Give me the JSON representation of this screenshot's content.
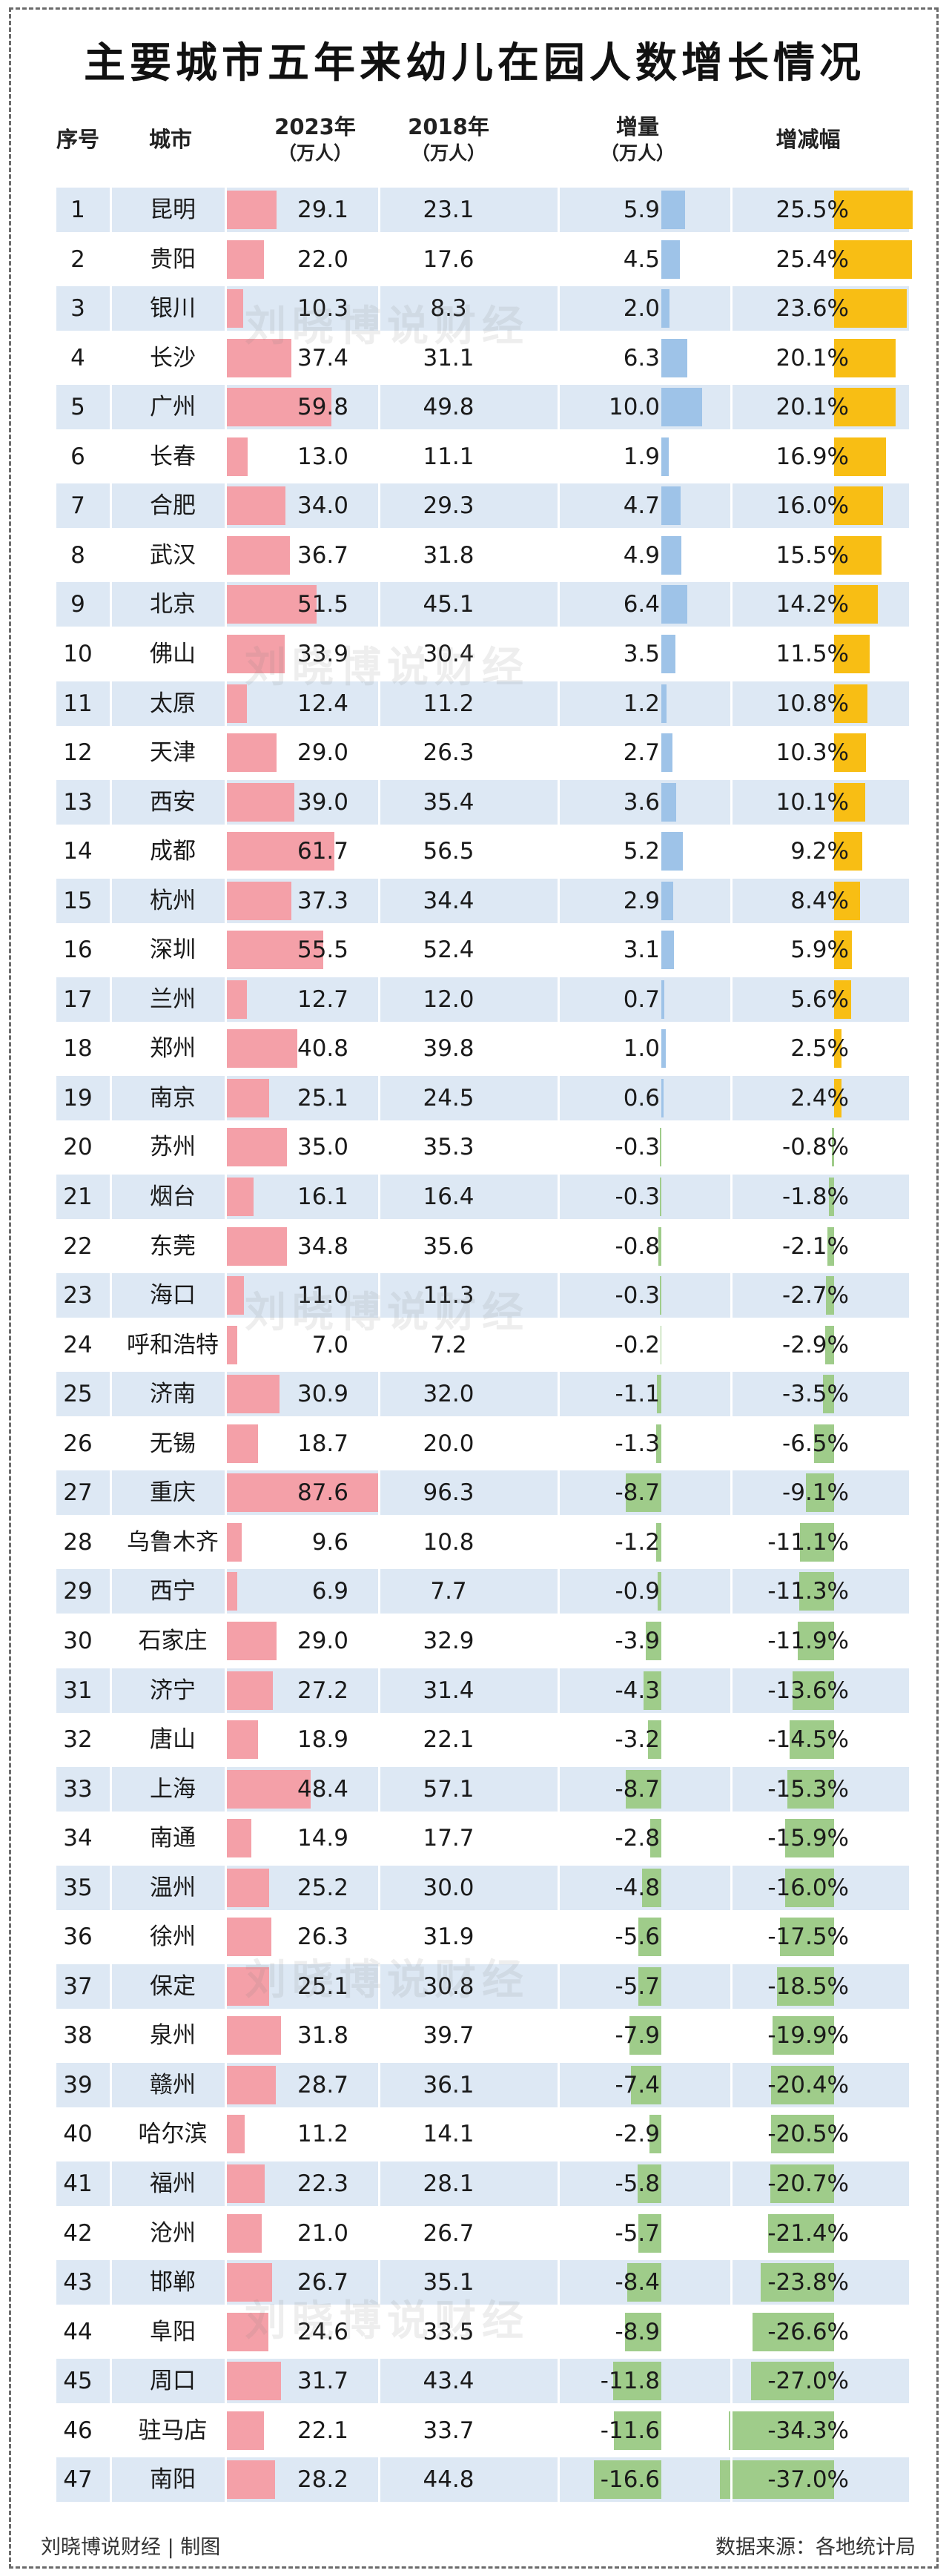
{
  "title": "主要城市五年来幼儿在园人数增长情况",
  "header": {
    "index": "序号",
    "city": "城市",
    "y2023": "2023年",
    "y2023_unit": "（万人）",
    "y2018": "2018年",
    "y2018_unit": "（万人）",
    "increase": "增量",
    "increase_unit": "（万人）",
    "growth": "增减幅"
  },
  "watermark": "刘晓博说财经",
  "footer": {
    "credit": "刘晓博说财经 | 制图",
    "source": "数据来源：各地统计局"
  },
  "colors": {
    "bar_2023": "#f4a0a8",
    "bar_increase_pos": "#9ec3e8",
    "bar_increase_neg": "#9fcc8a",
    "bar_growth_pos": "#f8be14",
    "bar_growth_neg": "#9fcc8a",
    "row_band": "#dde8f4"
  },
  "chart_data": {
    "type": "table",
    "columns": [
      "序号",
      "城市",
      "2023年（万人）",
      "2018年（万人）",
      "增量（万人）",
      "增减幅"
    ],
    "rows": [
      {
        "idx": "1",
        "city": "昆明",
        "v2023": "29.1",
        "v2018": "23.1",
        "inc": "5.9",
        "pct": "25.5%"
      },
      {
        "idx": "2",
        "city": "贵阳",
        "v2023": "22.0",
        "v2018": "17.6",
        "inc": "4.5",
        "pct": "25.4%"
      },
      {
        "idx": "3",
        "city": "银川",
        "v2023": "10.3",
        "v2018": "8.3",
        "inc": "2.0",
        "pct": "23.6%"
      },
      {
        "idx": "4",
        "city": "长沙",
        "v2023": "37.4",
        "v2018": "31.1",
        "inc": "6.3",
        "pct": "20.1%"
      },
      {
        "idx": "5",
        "city": "广州",
        "v2023": "59.8",
        "v2018": "49.8",
        "inc": "10.0",
        "pct": "20.1%"
      },
      {
        "idx": "6",
        "city": "长春",
        "v2023": "13.0",
        "v2018": "11.1",
        "inc": "1.9",
        "pct": "16.9%"
      },
      {
        "idx": "7",
        "city": "合肥",
        "v2023": "34.0",
        "v2018": "29.3",
        "inc": "4.7",
        "pct": "16.0%"
      },
      {
        "idx": "8",
        "city": "武汉",
        "v2023": "36.7",
        "v2018": "31.8",
        "inc": "4.9",
        "pct": "15.5%"
      },
      {
        "idx": "9",
        "city": "北京",
        "v2023": "51.5",
        "v2018": "45.1",
        "inc": "6.4",
        "pct": "14.2%"
      },
      {
        "idx": "10",
        "city": "佛山",
        "v2023": "33.9",
        "v2018": "30.4",
        "inc": "3.5",
        "pct": "11.5%"
      },
      {
        "idx": "11",
        "city": "太原",
        "v2023": "12.4",
        "v2018": "11.2",
        "inc": "1.2",
        "pct": "10.8%"
      },
      {
        "idx": "12",
        "city": "天津",
        "v2023": "29.0",
        "v2018": "26.3",
        "inc": "2.7",
        "pct": "10.3%"
      },
      {
        "idx": "13",
        "city": "西安",
        "v2023": "39.0",
        "v2018": "35.4",
        "inc": "3.6",
        "pct": "10.1%"
      },
      {
        "idx": "14",
        "city": "成都",
        "v2023": "61.7",
        "v2018": "56.5",
        "inc": "5.2",
        "pct": "9.2%"
      },
      {
        "idx": "15",
        "city": "杭州",
        "v2023": "37.3",
        "v2018": "34.4",
        "inc": "2.9",
        "pct": "8.4%"
      },
      {
        "idx": "16",
        "city": "深圳",
        "v2023": "55.5",
        "v2018": "52.4",
        "inc": "3.1",
        "pct": "5.9%"
      },
      {
        "idx": "17",
        "city": "兰州",
        "v2023": "12.7",
        "v2018": "12.0",
        "inc": "0.7",
        "pct": "5.6%"
      },
      {
        "idx": "18",
        "city": "郑州",
        "v2023": "40.8",
        "v2018": "39.8",
        "inc": "1.0",
        "pct": "2.5%"
      },
      {
        "idx": "19",
        "city": "南京",
        "v2023": "25.1",
        "v2018": "24.5",
        "inc": "0.6",
        "pct": "2.4%"
      },
      {
        "idx": "20",
        "city": "苏州",
        "v2023": "35.0",
        "v2018": "35.3",
        "inc": "-0.3",
        "pct": "-0.8%"
      },
      {
        "idx": "21",
        "city": "烟台",
        "v2023": "16.1",
        "v2018": "16.4",
        "inc": "-0.3",
        "pct": "-1.8%"
      },
      {
        "idx": "22",
        "city": "东莞",
        "v2023": "34.8",
        "v2018": "35.6",
        "inc": "-0.8",
        "pct": "-2.1%"
      },
      {
        "idx": "23",
        "city": "海口",
        "v2023": "11.0",
        "v2018": "11.3",
        "inc": "-0.3",
        "pct": "-2.7%"
      },
      {
        "idx": "24",
        "city": "呼和浩特",
        "v2023": "7.0",
        "v2018": "7.2",
        "inc": "-0.2",
        "pct": "-2.9%"
      },
      {
        "idx": "25",
        "city": "济南",
        "v2023": "30.9",
        "v2018": "32.0",
        "inc": "-1.1",
        "pct": "-3.5%"
      },
      {
        "idx": "26",
        "city": "无锡",
        "v2023": "18.7",
        "v2018": "20.0",
        "inc": "-1.3",
        "pct": "-6.5%"
      },
      {
        "idx": "27",
        "city": "重庆",
        "v2023": "87.6",
        "v2018": "96.3",
        "inc": "-8.7",
        "pct": "-9.1%"
      },
      {
        "idx": "28",
        "city": "乌鲁木齐",
        "v2023": "9.6",
        "v2018": "10.8",
        "inc": "-1.2",
        "pct": "-11.1%"
      },
      {
        "idx": "29",
        "city": "西宁",
        "v2023": "6.9",
        "v2018": "7.7",
        "inc": "-0.9",
        "pct": "-11.3%"
      },
      {
        "idx": "30",
        "city": "石家庄",
        "v2023": "29.0",
        "v2018": "32.9",
        "inc": "-3.9",
        "pct": "-11.9%"
      },
      {
        "idx": "31",
        "city": "济宁",
        "v2023": "27.2",
        "v2018": "31.4",
        "inc": "-4.3",
        "pct": "-13.6%"
      },
      {
        "idx": "32",
        "city": "唐山",
        "v2023": "18.9",
        "v2018": "22.1",
        "inc": "-3.2",
        "pct": "-14.5%"
      },
      {
        "idx": "33",
        "city": "上海",
        "v2023": "48.4",
        "v2018": "57.1",
        "inc": "-8.7",
        "pct": "-15.3%"
      },
      {
        "idx": "34",
        "city": "南通",
        "v2023": "14.9",
        "v2018": "17.7",
        "inc": "-2.8",
        "pct": "-15.9%"
      },
      {
        "idx": "35",
        "city": "温州",
        "v2023": "25.2",
        "v2018": "30.0",
        "inc": "-4.8",
        "pct": "-16.0%"
      },
      {
        "idx": "36",
        "city": "徐州",
        "v2023": "26.3",
        "v2018": "31.9",
        "inc": "-5.6",
        "pct": "-17.5%"
      },
      {
        "idx": "37",
        "city": "保定",
        "v2023": "25.1",
        "v2018": "30.8",
        "inc": "-5.7",
        "pct": "-18.5%"
      },
      {
        "idx": "38",
        "city": "泉州",
        "v2023": "31.8",
        "v2018": "39.7",
        "inc": "-7.9",
        "pct": "-19.9%"
      },
      {
        "idx": "39",
        "city": "赣州",
        "v2023": "28.7",
        "v2018": "36.1",
        "inc": "-7.4",
        "pct": "-20.4%"
      },
      {
        "idx": "40",
        "city": "哈尔滨",
        "v2023": "11.2",
        "v2018": "14.1",
        "inc": "-2.9",
        "pct": "-20.5%"
      },
      {
        "idx": "41",
        "city": "福州",
        "v2023": "22.3",
        "v2018": "28.1",
        "inc": "-5.8",
        "pct": "-20.7%"
      },
      {
        "idx": "42",
        "city": "沧州",
        "v2023": "21.0",
        "v2018": "26.7",
        "inc": "-5.7",
        "pct": "-21.4%"
      },
      {
        "idx": "43",
        "city": "邯郸",
        "v2023": "26.7",
        "v2018": "35.1",
        "inc": "-8.4",
        "pct": "-23.8%"
      },
      {
        "idx": "44",
        "city": "阜阳",
        "v2023": "24.6",
        "v2018": "33.5",
        "inc": "-8.9",
        "pct": "-26.6%"
      },
      {
        "idx": "45",
        "city": "周口",
        "v2023": "31.7",
        "v2018": "43.4",
        "inc": "-11.8",
        "pct": "-27.0%"
      },
      {
        "idx": "46",
        "city": "驻马店",
        "v2023": "22.1",
        "v2018": "33.7",
        "inc": "-11.6",
        "pct": "-34.3%"
      },
      {
        "idx": "47",
        "city": "南阳",
        "v2023": "28.2",
        "v2018": "44.8",
        "inc": "-16.6",
        "pct": "-37.0%"
      }
    ]
  }
}
